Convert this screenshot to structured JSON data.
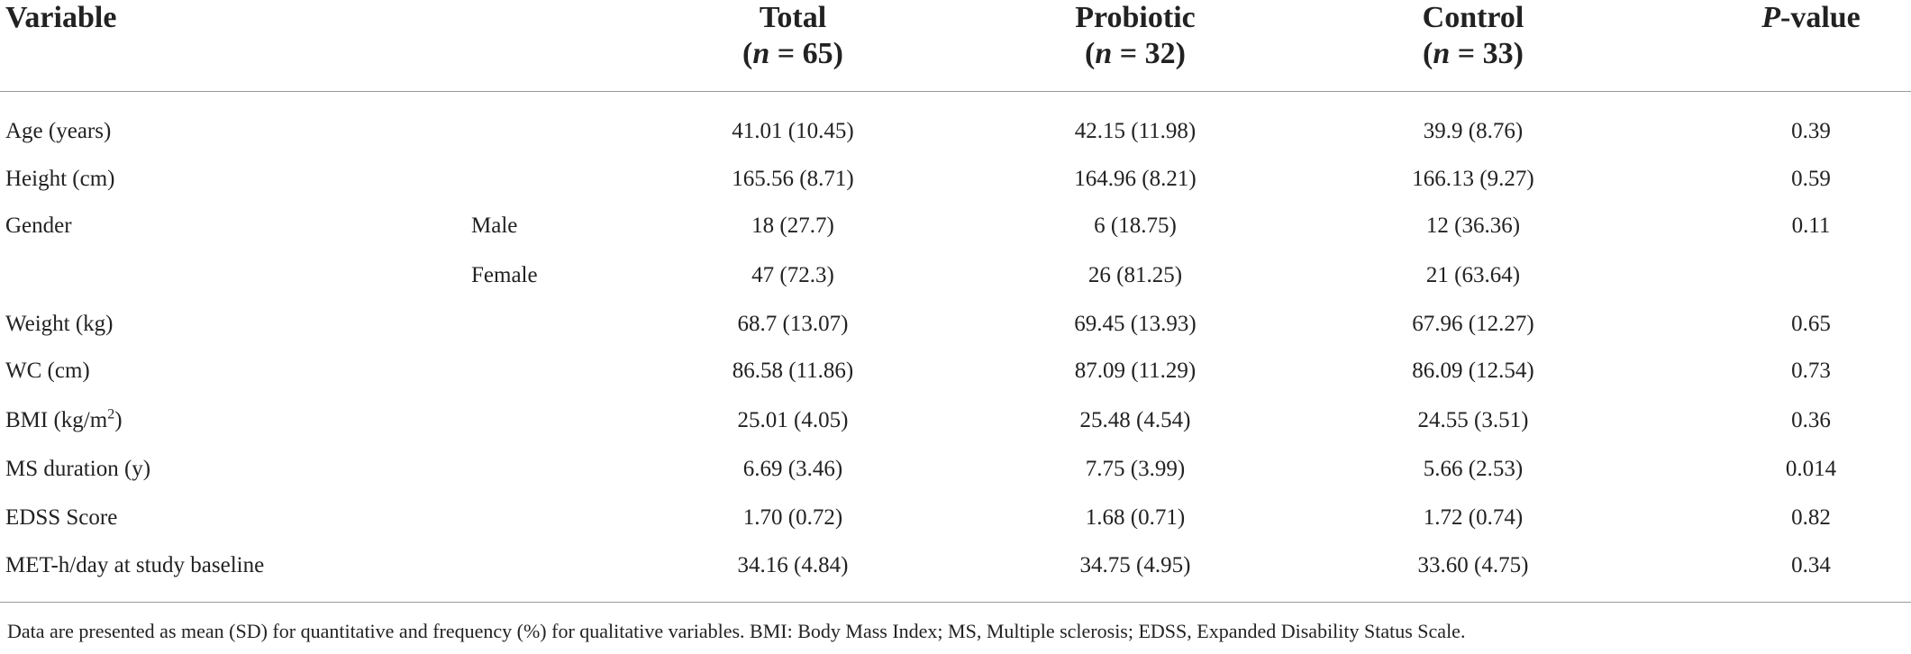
{
  "table": {
    "headers": {
      "variable": "Variable",
      "total": "Total",
      "total_n_label": "n",
      "total_n": " = 65",
      "probiotic": "Probiotic",
      "probiotic_n_label": "n",
      "probiotic_n": " = 32",
      "control": "Control",
      "control_n_label": "n",
      "control_n": " = 33",
      "pvalue_p": "P",
      "pvalue_rest": "-value"
    },
    "rows": [
      {
        "variable": "Age (years)",
        "sub": "",
        "total": "41.01 (10.45)",
        "probiotic": "42.15 (11.98)",
        "control": "39.9 (8.76)",
        "p": "0.39"
      },
      {
        "variable": "Height (cm)",
        "sub": "",
        "total": "165.56 (8.71)",
        "probiotic": "164.96 (8.21)",
        "control": "166.13 (9.27)",
        "p": "0.59"
      },
      {
        "variable": "Gender",
        "sub": "Male",
        "total": "18 (27.7)",
        "probiotic": "6 (18.75)",
        "control": "12 (36.36)",
        "p": "0.11"
      },
      {
        "variable": "",
        "sub": "Female",
        "total": "47 (72.3)",
        "probiotic": "26 (81.25)",
        "control": "21 (63.64)",
        "p": ""
      },
      {
        "variable": "Weight (kg)",
        "sub": "",
        "total": "68.7 (13.07)",
        "probiotic": "69.45 (13.93)",
        "control": "67.96 (12.27)",
        "p": "0.65"
      },
      {
        "variable": "WC (cm)",
        "sub": "",
        "total": "86.58 (11.86)",
        "probiotic": "87.09 (11.29)",
        "control": "86.09 (12.54)",
        "p": "0.73"
      },
      {
        "variable": "BMI (kg/m",
        "variable_sup": "2",
        "variable_end": ")",
        "sub": "",
        "total": "25.01 (4.05)",
        "probiotic": "25.48 (4.54)",
        "control": "24.55 (3.51)",
        "p": "0.36"
      },
      {
        "variable": "MS duration (y)",
        "sub": "",
        "total": "6.69 (3.46)",
        "probiotic": "7.75 (3.99)",
        "control": "5.66 (2.53)",
        "p": "0.014"
      },
      {
        "variable": "EDSS Score",
        "sub": "",
        "total": "1.70 (0.72)",
        "probiotic": "1.68 (0.71)",
        "control": "1.72 (0.74)",
        "p": "0.82"
      },
      {
        "variable": "MET-h/day at study baseline",
        "sub": "",
        "total": "34.16 (4.84)",
        "probiotic": "34.75 (4.95)",
        "control": "33.60 (4.75)",
        "p": "0.34"
      }
    ],
    "footnote": "Data are presented as mean (SD) for quantitative and frequency (%) for qualitative variables. BMI: Body Mass Index; MS, Multiple sclerosis; EDSS, Expanded Disability Status Scale."
  }
}
